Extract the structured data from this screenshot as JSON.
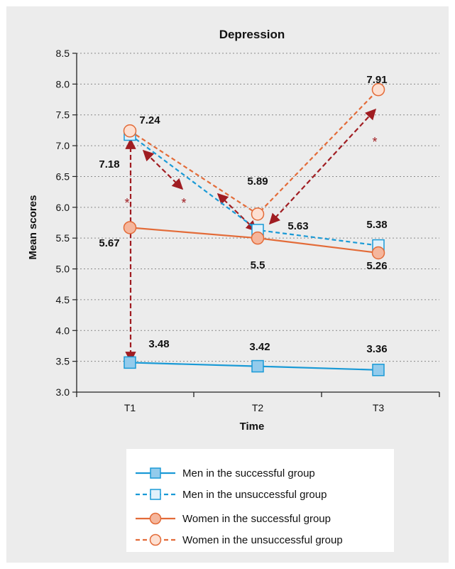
{
  "chart_data": {
    "type": "line",
    "title": "Depression",
    "xlabel": "Time",
    "ylabel": "Mean scores",
    "categories": [
      "T1",
      "T2",
      "T3"
    ],
    "ylim": [
      3.0,
      8.5
    ],
    "yticks": [
      "3.0",
      "3.5",
      "4.0",
      "4.5",
      "5.0",
      "5.5",
      "6.0",
      "6.5",
      "7.0",
      "7.5",
      "8.0",
      "8.5"
    ],
    "grid": "horizontal-dotted",
    "legend_position": "bottom",
    "series": [
      {
        "name": "Men in the successful group",
        "values": [
          3.48,
          3.42,
          3.36
        ],
        "labels": [
          "3.48",
          "3.42",
          "3.36"
        ],
        "color": "#1a9ad6",
        "marker": "square",
        "filled": true,
        "dashed": false
      },
      {
        "name": "Men in the unsuccessful group",
        "values": [
          7.18,
          5.63,
          5.38
        ],
        "labels": [
          "7.18",
          "5.63",
          "5.38"
        ],
        "color": "#1a9ad6",
        "marker": "square",
        "filled": false,
        "dashed": true
      },
      {
        "name": "Women in the successful group",
        "values": [
          5.67,
          5.5,
          5.26
        ],
        "labels": [
          "5.67",
          "5.5",
          "5.26"
        ],
        "color": "#e36b38",
        "marker": "circle",
        "filled": true,
        "dashed": false
      },
      {
        "name": "Women in the unsuccessful group",
        "values": [
          7.24,
          5.89,
          7.91
        ],
        "labels": [
          "7.24",
          "5.89",
          "7.91"
        ],
        "color": "#e36b38",
        "marker": "circle",
        "filled": false,
        "dashed": true
      }
    ],
    "annotations": [
      {
        "text": "*",
        "type": "significance",
        "between": "T1 successful vs unsuccessful"
      },
      {
        "text": "*",
        "type": "significance",
        "between": "T1 to T2 unsuccessful"
      },
      {
        "text": "*",
        "type": "significance",
        "between": "T2 to T3 unsuccessful"
      }
    ],
    "arrow_color": "#a01d22"
  }
}
